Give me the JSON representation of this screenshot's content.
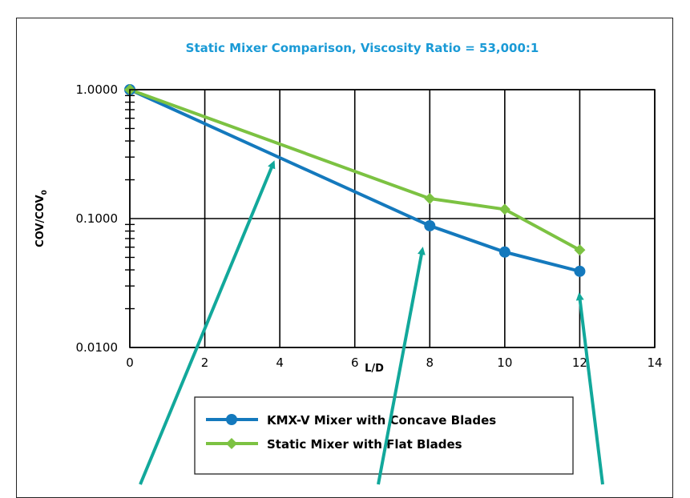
{
  "colors": {
    "title": "#1a9ad6",
    "series1": "#1479bd",
    "series2": "#7cc242",
    "arrow": "#12a89b",
    "axis": "#000000"
  },
  "chart_data": {
    "type": "line",
    "title": "Static Mixer Comparison, Viscosity Ratio = 53,000:1",
    "xlabel": "L/D",
    "ylabel_main": "COV/COV",
    "ylabel_sub": "0",
    "xlim": [
      0,
      14
    ],
    "ylim": [
      0.01,
      1
    ],
    "yscale": "log",
    "xticks": [
      "0",
      "2",
      "4",
      "6",
      "8",
      "10",
      "12",
      "14"
    ],
    "yticks": [
      "1.0000",
      "0.1000",
      "0.0100"
    ],
    "grid": true,
    "legend_position": "lower-center",
    "series": [
      {
        "name": "KMX-V Mixer with Concave Blades",
        "marker": "circle",
        "x": [
          0,
          8,
          10,
          12
        ],
        "y": [
          1.0,
          0.088,
          0.055,
          0.039
        ]
      },
      {
        "name": "Static Mixer with Flat Blades",
        "marker": "diamond",
        "x": [
          0,
          8,
          10,
          12
        ],
        "y": [
          1.0,
          0.143,
          0.118,
          0.057
        ]
      }
    ],
    "annotation_targets": [
      {
        "x": 4,
        "y": 0.29
      },
      {
        "x": 8,
        "y": 0.086
      },
      {
        "x": 12,
        "y": 0.038
      }
    ]
  }
}
